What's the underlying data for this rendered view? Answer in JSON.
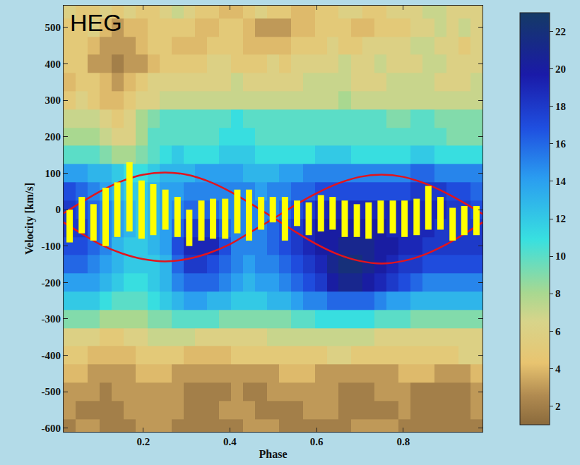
{
  "chart_data": {
    "type": "heatmap",
    "label": "HEG",
    "x_label": "Phase",
    "y_label": "Velocity [km/s]",
    "xlim": [
      0.016,
      0.983
    ],
    "xticks": [
      0.2,
      0.4,
      0.6,
      0.8
    ],
    "ylim": [
      -610,
      560
    ],
    "yticks": [
      -600,
      -500,
      -400,
      -300,
      -200,
      -100,
      0,
      100,
      200,
      300,
      400,
      500
    ],
    "grid": false,
    "colorbar": {
      "range": [
        1,
        23
      ],
      "ticks": [
        2,
        4,
        6,
        8,
        10,
        12,
        14,
        16,
        18,
        20,
        22
      ]
    },
    "x": [
      0.03,
      0.058,
      0.085,
      0.113,
      0.14,
      0.168,
      0.196,
      0.223,
      0.251,
      0.279,
      0.306,
      0.334,
      0.361,
      0.389,
      0.417,
      0.444,
      0.472,
      0.499,
      0.527,
      0.555,
      0.582,
      0.61,
      0.637,
      0.665,
      0.693,
      0.72,
      0.748,
      0.776,
      0.803,
      0.831,
      0.858,
      0.886,
      0.914,
      0.941,
      0.969
    ],
    "y": [
      550,
      500,
      450,
      400,
      350,
      300,
      250,
      200,
      150,
      100,
      50,
      0,
      -50,
      -100,
      -150,
      -200,
      -250,
      -300,
      -350,
      -400,
      -450,
      -500,
      -550,
      -600
    ],
    "cells": [
      [
        6,
        5,
        5,
        6,
        5,
        6,
        5,
        5,
        6,
        7,
        6,
        5,
        5,
        4,
        4,
        5,
        6,
        5,
        5,
        4,
        4,
        5,
        5,
        6,
        6,
        5,
        5,
        6,
        6,
        6,
        7,
        7,
        6,
        6,
        6
      ],
      [
        5,
        5,
        6,
        4,
        3,
        4,
        4,
        5,
        5,
        5,
        5,
        4,
        4,
        5,
        5,
        4,
        3,
        3,
        3,
        4,
        4,
        5,
        5,
        5,
        4,
        4,
        5,
        5,
        5,
        6,
        6,
        7,
        6,
        7,
        6
      ],
      [
        5,
        5,
        4,
        3,
        3,
        3,
        4,
        5,
        5,
        4,
        4,
        4,
        5,
        5,
        5,
        4,
        4,
        4,
        4,
        5,
        5,
        5,
        6,
        5,
        5,
        6,
        6,
        6,
        6,
        7,
        7,
        6,
        6,
        5,
        6
      ],
      [
        5,
        5,
        3,
        3,
        2,
        3,
        3,
        4,
        5,
        5,
        5,
        5,
        6,
        6,
        5,
        5,
        5,
        6,
        5,
        6,
        6,
        6,
        6,
        7,
        6,
        6,
        7,
        6,
        6,
        6,
        7,
        7,
        6,
        6,
        6
      ],
      [
        4,
        5,
        5,
        4,
        3,
        4,
        5,
        6,
        6,
        6,
        6,
        6,
        6,
        6,
        7,
        6,
        6,
        6,
        6,
        6,
        7,
        7,
        7,
        7,
        6,
        6,
        6,
        7,
        7,
        7,
        7,
        6,
        6,
        6,
        7
      ],
      [
        5,
        6,
        5,
        4,
        4,
        5,
        6,
        6,
        7,
        7,
        7,
        7,
        7,
        7,
        7,
        7,
        7,
        7,
        7,
        7,
        7,
        7,
        7,
        8,
        7,
        7,
        7,
        7,
        7,
        7,
        7,
        7,
        7,
        7,
        7
      ],
      [
        7,
        7,
        7,
        6,
        5,
        6,
        8,
        9,
        10,
        10,
        10,
        10,
        10,
        10,
        11,
        10,
        10,
        10,
        10,
        10,
        10,
        10,
        10,
        10,
        10,
        10,
        10,
        9,
        9,
        10,
        10,
        9,
        9,
        9,
        9
      ],
      [
        8,
        8,
        8,
        7,
        6,
        6,
        8,
        10,
        10,
        10,
        10,
        10,
        10,
        11,
        11,
        11,
        10,
        10,
        10,
        10,
        10,
        10,
        10,
        10,
        10,
        10,
        10,
        10,
        10,
        10,
        10,
        10,
        9,
        9,
        9
      ],
      [
        10,
        10,
        10,
        9,
        8,
        8,
        9,
        10,
        11,
        12,
        11,
        11,
        11,
        12,
        12,
        12,
        11,
        11,
        11,
        11,
        11,
        12,
        12,
        12,
        11,
        11,
        11,
        11,
        11,
        12,
        12,
        11,
        11,
        11,
        11
      ],
      [
        14,
        14,
        13,
        13,
        12,
        11,
        11,
        12,
        13,
        13,
        13,
        14,
        14,
        14,
        14,
        13,
        13,
        13,
        14,
        14,
        15,
        15,
        15,
        15,
        15,
        15,
        15,
        15,
        15,
        16,
        16,
        15,
        15,
        15,
        15
      ],
      [
        17,
        16,
        15,
        14,
        13,
        12,
        12,
        13,
        14,
        14,
        15,
        15,
        15,
        15,
        15,
        15,
        14,
        15,
        15,
        16,
        16,
        17,
        17,
        17,
        17,
        17,
        17,
        17,
        17,
        18,
        18,
        18,
        17,
        17,
        16
      ],
      [
        18,
        17,
        16,
        15,
        14,
        13,
        12,
        13,
        14,
        15,
        16,
        16,
        16,
        15,
        15,
        15,
        15,
        15,
        16,
        17,
        18,
        19,
        19,
        19,
        19,
        19,
        19,
        19,
        19,
        19,
        19,
        19,
        18,
        18,
        17
      ],
      [
        18,
        18,
        16,
        15,
        14,
        13,
        12,
        13,
        14,
        16,
        18,
        18,
        18,
        16,
        15,
        15,
        15,
        16,
        17,
        18,
        19,
        20,
        20,
        20,
        20,
        20,
        20,
        19,
        19,
        19,
        19,
        18,
        18,
        18,
        18
      ],
      [
        17,
        17,
        16,
        15,
        13,
        12,
        12,
        13,
        14,
        17,
        19,
        19,
        19,
        17,
        15,
        15,
        15,
        16,
        17,
        18,
        19,
        20,
        20,
        21,
        21,
        21,
        20,
        20,
        19,
        19,
        18,
        18,
        18,
        18,
        18
      ],
      [
        16,
        16,
        15,
        14,
        13,
        12,
        12,
        12,
        13,
        16,
        18,
        18,
        17,
        16,
        15,
        14,
        15,
        15,
        16,
        17,
        18,
        19,
        21,
        22,
        22,
        21,
        20,
        19,
        18,
        18,
        17,
        17,
        17,
        17,
        17
      ],
      [
        14,
        14,
        14,
        13,
        12,
        11,
        11,
        12,
        13,
        15,
        16,
        16,
        16,
        15,
        14,
        13,
        14,
        14,
        15,
        16,
        17,
        18,
        20,
        21,
        21,
        20,
        19,
        18,
        17,
        16,
        15,
        15,
        15,
        15,
        15
      ],
      [
        12,
        12,
        12,
        11,
        10,
        10,
        10,
        11,
        12,
        13,
        14,
        14,
        13,
        13,
        12,
        12,
        12,
        13,
        13,
        14,
        15,
        15,
        16,
        16,
        16,
        16,
        15,
        14,
        14,
        13,
        13,
        13,
        13,
        13,
        13
      ],
      [
        9,
        9,
        9,
        8,
        8,
        8,
        8,
        9,
        9,
        10,
        10,
        10,
        10,
        9,
        9,
        9,
        9,
        9,
        9,
        10,
        10,
        11,
        11,
        11,
        11,
        11,
        10,
        10,
        10,
        9,
        9,
        9,
        9,
        9,
        9
      ],
      [
        6,
        6,
        6,
        5,
        5,
        6,
        6,
        7,
        7,
        7,
        7,
        6,
        6,
        6,
        6,
        6,
        6,
        7,
        7,
        7,
        7,
        7,
        7,
        7,
        7,
        7,
        6,
        6,
        6,
        6,
        6,
        6,
        6,
        6,
        6
      ],
      [
        5,
        5,
        4,
        4,
        4,
        4,
        5,
        5,
        5,
        5,
        4,
        4,
        4,
        4,
        5,
        5,
        5,
        5,
        5,
        5,
        5,
        5,
        6,
        6,
        5,
        5,
        5,
        5,
        5,
        5,
        5,
        5,
        5,
        6,
        6
      ],
      [
        4,
        4,
        3,
        3,
        3,
        3,
        4,
        4,
        4,
        3,
        3,
        3,
        3,
        3,
        3,
        3,
        3,
        3,
        4,
        4,
        4,
        3,
        3,
        3,
        3,
        3,
        3,
        3,
        4,
        4,
        4,
        3,
        3,
        3,
        4
      ],
      [
        3,
        3,
        3,
        2,
        3,
        3,
        3,
        3,
        3,
        3,
        2,
        2,
        2,
        2,
        3,
        2,
        2,
        3,
        3,
        3,
        3,
        3,
        3,
        2,
        2,
        2,
        3,
        3,
        3,
        2,
        2,
        2,
        2,
        2,
        3
      ],
      [
        3,
        2,
        2,
        2,
        2,
        3,
        3,
        3,
        3,
        3,
        2,
        2,
        2,
        3,
        3,
        3,
        2,
        2,
        2,
        2,
        3,
        3,
        3,
        2,
        2,
        2,
        2,
        2,
        3,
        2,
        2,
        2,
        2,
        2,
        3
      ],
      [
        2,
        3,
        3,
        2,
        2,
        2,
        3,
        3,
        3,
        2,
        2,
        2,
        2,
        2,
        2,
        3,
        3,
        3,
        2,
        2,
        2,
        2,
        2,
        2,
        3,
        3,
        3,
        3,
        2,
        2,
        2,
        2,
        2,
        2,
        2
      ]
    ],
    "series": [
      {
        "type": "line",
        "color": "#e3141c",
        "x": [
          0.016,
          0.05,
          0.1,
          0.15,
          0.2,
          0.25,
          0.3,
          0.35,
          0.4,
          0.45,
          0.5,
          0.55,
          0.6,
          0.65,
          0.7,
          0.75,
          0.8,
          0.85,
          0.9,
          0.95,
          0.983
        ],
        "values": [
          -10,
          15,
          50,
          78,
          96,
          102,
          96,
          78,
          50,
          15,
          -22,
          -60,
          -95,
          -123,
          -141,
          -148,
          -141,
          -123,
          -95,
          -60,
          -35
        ]
      },
      {
        "type": "line",
        "color": "#e3141c",
        "x": [
          0.016,
          0.05,
          0.1,
          0.15,
          0.2,
          0.25,
          0.3,
          0.35,
          0.4,
          0.45,
          0.5,
          0.55,
          0.6,
          0.65,
          0.7,
          0.75,
          0.8,
          0.85,
          0.9,
          0.95,
          0.983
        ],
        "values": [
          -35,
          -60,
          -95,
          -120,
          -136,
          -142,
          -136,
          -120,
          -95,
          -60,
          -25,
          12,
          45,
          72,
          90,
          96,
          90,
          72,
          45,
          12,
          -12
        ]
      },
      {
        "type": "errorbar",
        "color": "#ffff00",
        "x": [
          0.03,
          0.058,
          0.085,
          0.113,
          0.14,
          0.168,
          0.196,
          0.223,
          0.251,
          0.279,
          0.306,
          0.334,
          0.361,
          0.389,
          0.417,
          0.444,
          0.472,
          0.499,
          0.527,
          0.555,
          0.582,
          0.61,
          0.637,
          0.665,
          0.693,
          0.72,
          0.748,
          0.776,
          0.803,
          0.831,
          0.858,
          0.886,
          0.914,
          0.941,
          0.969
        ],
        "values": [
          -45,
          -15,
          -35,
          -20,
          0,
          35,
          0,
          0,
          0,
          -20,
          -50,
          -30,
          -25,
          -25,
          -5,
          -15,
          -10,
          0,
          -25,
          -10,
          -25,
          -10,
          -10,
          -25,
          -30,
          -30,
          -20,
          -20,
          -25,
          -20,
          5,
          -10,
          -40,
          -30,
          -30
        ],
        "errors": [
          45,
          50,
          50,
          80,
          75,
          95,
          80,
          70,
          55,
          55,
          50,
          55,
          55,
          55,
          60,
          70,
          45,
          35,
          60,
          35,
          45,
          50,
          45,
          50,
          45,
          50,
          45,
          45,
          50,
          50,
          60,
          45,
          45,
          40,
          40
        ]
      }
    ]
  }
}
